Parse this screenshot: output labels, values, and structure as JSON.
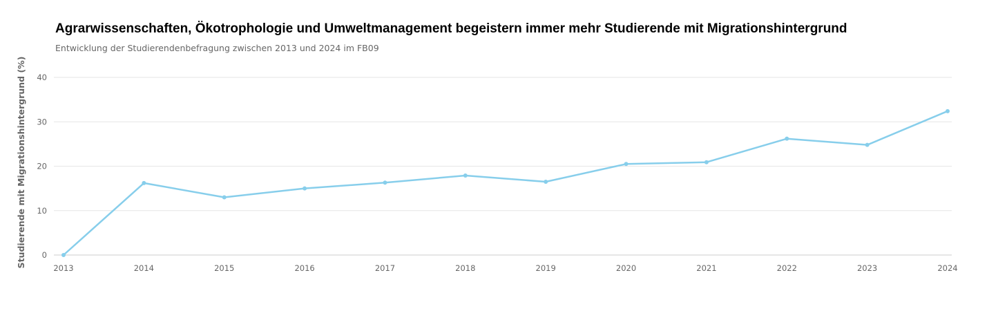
{
  "chart_data": {
    "type": "line",
    "title": "Agrarwissenschaften, Ökotrophologie und Umweltmanagement begeistern immer mehr Studierende mit Migrationshintergrund",
    "subtitle": "Entwicklung der Studierendenbefragung zwischen 2013 und 2024 im FB09",
    "xlabel": "",
    "ylabel": "Studierende mit Migrationshintergrund (%)",
    "x": [
      "2013",
      "2014",
      "2015",
      "2016",
      "2017",
      "2018",
      "2019",
      "2020",
      "2021",
      "2022",
      "2023",
      "2024"
    ],
    "series": [
      {
        "values": [
          0,
          16.2,
          13.0,
          15.0,
          16.3,
          17.9,
          16.5,
          20.5,
          20.9,
          26.2,
          24.8,
          32.4
        ]
      }
    ],
    "ylim": [
      0,
      40
    ],
    "yticks": [
      "0",
      "10",
      "20",
      "30",
      "40"
    ],
    "grid": true,
    "legend": "none",
    "line_color": "#87ceeb"
  }
}
